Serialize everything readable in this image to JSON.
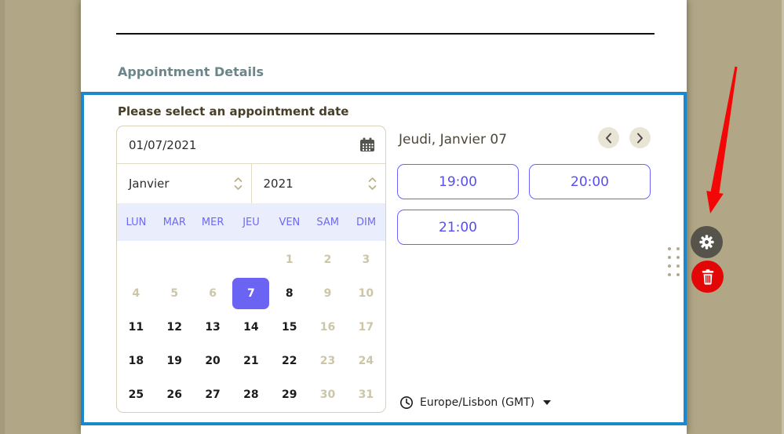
{
  "form": {
    "section_title": "Appointment Details"
  },
  "widget": {
    "question_label": "Please select an appointment date",
    "datepicker": {
      "date_value": "01/07/2021",
      "month": "Janvier",
      "year": "2021",
      "weekday_headers": [
        "LUN",
        "MAR",
        "MER",
        "JEU",
        "VEN",
        "SAM",
        "DIM"
      ],
      "weeks": [
        [
          {
            "d": "",
            "s": "empty"
          },
          {
            "d": "",
            "s": "empty"
          },
          {
            "d": "",
            "s": "empty"
          },
          {
            "d": "",
            "s": "empty"
          },
          {
            "d": "1",
            "s": "disabled"
          },
          {
            "d": "2",
            "s": "disabled"
          },
          {
            "d": "3",
            "s": "disabled"
          }
        ],
        [
          {
            "d": "4",
            "s": "disabled"
          },
          {
            "d": "5",
            "s": "disabled"
          },
          {
            "d": "6",
            "s": "disabled"
          },
          {
            "d": "7",
            "s": "selected"
          },
          {
            "d": "8",
            "s": "active"
          },
          {
            "d": "9",
            "s": "disabled"
          },
          {
            "d": "10",
            "s": "disabled"
          }
        ],
        [
          {
            "d": "11",
            "s": "active"
          },
          {
            "d": "12",
            "s": "active"
          },
          {
            "d": "13",
            "s": "active"
          },
          {
            "d": "14",
            "s": "active"
          },
          {
            "d": "15",
            "s": "active"
          },
          {
            "d": "16",
            "s": "disabled"
          },
          {
            "d": "17",
            "s": "disabled"
          }
        ],
        [
          {
            "d": "18",
            "s": "active"
          },
          {
            "d": "19",
            "s": "active"
          },
          {
            "d": "20",
            "s": "active"
          },
          {
            "d": "21",
            "s": "active"
          },
          {
            "d": "22",
            "s": "active"
          },
          {
            "d": "23",
            "s": "disabled"
          },
          {
            "d": "24",
            "s": "disabled"
          }
        ],
        [
          {
            "d": "25",
            "s": "active"
          },
          {
            "d": "26",
            "s": "active"
          },
          {
            "d": "27",
            "s": "active"
          },
          {
            "d": "28",
            "s": "active"
          },
          {
            "d": "29",
            "s": "active"
          },
          {
            "d": "30",
            "s": "disabled"
          },
          {
            "d": "31",
            "s": "disabled"
          }
        ]
      ],
      "selected_day": "7"
    },
    "slots": {
      "header": "Jeudi, Janvier 07",
      "times": [
        "19:00",
        "20:00",
        "21:00"
      ],
      "timezone_label": "Europe/Lisbon (GMT)"
    }
  },
  "colors": {
    "background_tan": "#b1a787",
    "selection_border_blue": "#1b87cc",
    "accent_purple": "#6b63f2",
    "slot_text_purple": "#564df5",
    "weekday_header_bg": "#eaedfc",
    "disabled_day": "#ccc6a9",
    "section_title": "#6b868b",
    "settings_button_gray": "#56534b",
    "delete_button_red": "#e20606",
    "annotation_arrow_red": "#f30606"
  }
}
